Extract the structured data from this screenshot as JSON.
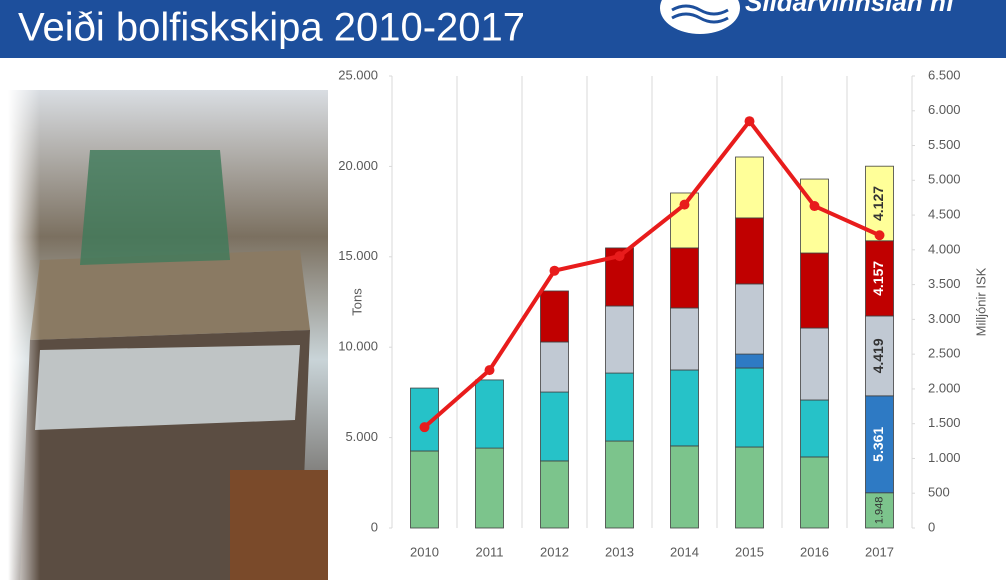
{
  "header": {
    "title": "Veiði bolfiskskipa 2010-2017",
    "logo": "Síldarvinnslan hf"
  },
  "chart_data": {
    "type": "bar",
    "stacked": true,
    "categories": [
      "2010",
      "2011",
      "2012",
      "2013",
      "2014",
      "2015",
      "2016",
      "2017"
    ],
    "ylabel": "Tons",
    "y2label": "Milljónir ISK",
    "ylim": [
      0,
      25000
    ],
    "yticks": [
      0,
      {
        "value": 5000,
        "label": "5.000"
      },
      {
        "value": 10000,
        "label": "10.000"
      },
      {
        "value": 15000,
        "label": "15.000"
      },
      {
        "value": 20000,
        "label": "20.000"
      },
      {
        "value": 25000,
        "label": "25.000"
      }
    ],
    "y2lim": [
      0,
      6500
    ],
    "y2ticks": [
      0,
      500,
      {
        "value": 1000,
        "label": "1.000"
      },
      {
        "value": 1500,
        "label": "1.500"
      },
      {
        "value": 2000,
        "label": "2.000"
      },
      {
        "value": 2500,
        "label": "2.500"
      },
      {
        "value": 3000,
        "label": "3.000"
      },
      {
        "value": 3500,
        "label": "3.500"
      },
      {
        "value": 4000,
        "label": "4.000"
      },
      {
        "value": 4500,
        "label": "4.500"
      },
      {
        "value": 5000,
        "label": "5.000"
      },
      {
        "value": 5500,
        "label": "5.500"
      },
      {
        "value": 6000,
        "label": "6.000"
      },
      {
        "value": 6500,
        "label": "6.500"
      }
    ],
    "grid": true,
    "series": [
      {
        "color": "#7cc48c",
        "values": [
          4260,
          4420,
          3710,
          4810,
          4540,
          4480,
          3930,
          1948
        ],
        "value_labels": [
          null,
          null,
          null,
          null,
          null,
          null,
          null,
          "1.948"
        ]
      },
      {
        "color": "#26c2c8",
        "values": [
          3480,
          3770,
          3810,
          3760,
          4200,
          4370,
          3150,
          null
        ]
      },
      {
        "color": "#2e7ac4",
        "values": [
          null,
          null,
          null,
          null,
          null,
          770,
          null,
          5361
        ],
        "value_labels": [
          null,
          null,
          null,
          null,
          null,
          null,
          null,
          "5.361"
        ]
      },
      {
        "color": "#c1c9d3",
        "values": [
          null,
          null,
          2770,
          3710,
          3430,
          3880,
          3980,
          4419
        ],
        "value_labels": [
          null,
          null,
          null,
          null,
          null,
          null,
          null,
          "4.419"
        ]
      },
      {
        "color": "#c00000",
        "values": [
          null,
          null,
          2820,
          3210,
          3320,
          3650,
          4150,
          4157
        ],
        "value_labels": [
          null,
          null,
          null,
          null,
          null,
          null,
          null,
          "4.157"
        ]
      },
      {
        "color": "#ffff99",
        "values": [
          null,
          null,
          null,
          null,
          3040,
          3370,
          4090,
          4127
        ],
        "value_labels": [
          null,
          null,
          null,
          null,
          null,
          null,
          null,
          "4.127"
        ]
      },
      {
        "type": "line",
        "axis": "y2",
        "color": "#e81c1c",
        "values": [
          1450,
          2270,
          3700,
          3910,
          4650,
          5850,
          4630,
          4210
        ]
      }
    ]
  }
}
